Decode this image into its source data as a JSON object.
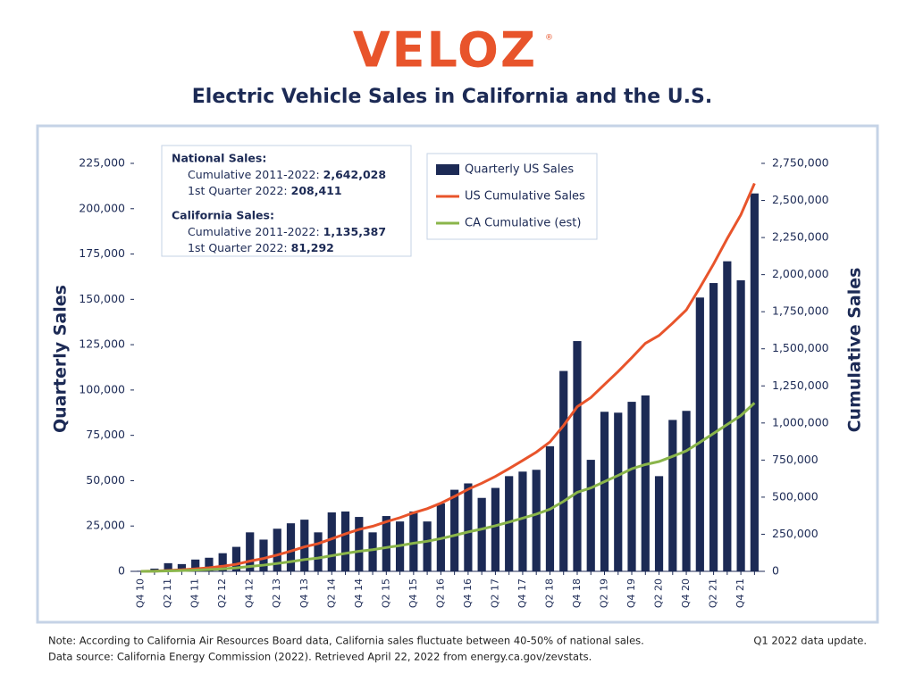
{
  "brand": "VELOZ",
  "brand_mark": "®",
  "footer": {
    "notes": [
      "Note: According to California Air Resources Board data, California sales fluctuate between 40-50% of national sales.",
      "Data source: California Energy Commission (2022). Retrieved April 22, 2022 from energy.ca.gov/zevstats."
    ],
    "update": "Q1 2022 data update."
  },
  "chart_data": {
    "type": "bar",
    "title": "Electric Vehicle Sales in California and the U.S.",
    "y_label": "Quarterly Sales",
    "y2_label": "Cumulative Sales",
    "categories": [
      "Q4 10",
      null,
      "Q2 11",
      null,
      "Q4 11",
      null,
      "Q2 12",
      null,
      "Q4 12",
      null,
      "Q2 13",
      null,
      "Q4 13",
      null,
      "Q2 14",
      null,
      "Q4 14",
      null,
      "Q2 15",
      null,
      "Q4 15",
      null,
      "Q2 16",
      null,
      "Q4 16",
      null,
      "Q2 17",
      null,
      "Q4 17",
      null,
      "Q2 18",
      null,
      "Q4 18",
      null,
      "Q2 19",
      null,
      "Q4 19",
      null,
      "Q2 20",
      null,
      "Q4 20",
      null,
      "Q2 21",
      null,
      "Q4 21",
      null
    ],
    "series": [
      {
        "name": "Quarterly US Sales",
        "type": "bar",
        "color": "#1c2a55",
        "axis": "y",
        "values": [
          300,
          1500,
          4500,
          4000,
          6500,
          7500,
          10000,
          13500,
          21500,
          17500,
          23500,
          26500,
          28500,
          21500,
          32500,
          33000,
          30000,
          21500,
          30500,
          27500,
          33000,
          27500,
          37500,
          45000,
          48500,
          40500,
          46000,
          52500,
          55000,
          56000,
          69000,
          110500,
          127000,
          61500,
          88000,
          87500,
          93500,
          97000,
          52500,
          83500,
          88500,
          151000,
          159000,
          171000,
          160500,
          208411
        ]
      },
      {
        "name": "US Cumulative Sales",
        "type": "line",
        "color": "#e8542b",
        "axis": "y2",
        "values": [
          300,
          1800,
          6300,
          10300,
          16800,
          24300,
          34300,
          47800,
          69300,
          86800,
          110300,
          136800,
          165300,
          186800,
          219300,
          252300,
          282300,
          303800,
          334300,
          361800,
          394800,
          422300,
          459800,
          504800,
          553300,
          593800,
          639800,
          692300,
          747300,
          803300,
          872300,
          982800,
          1109800,
          1171300,
          1259300,
          1346800,
          1440300,
          1537300,
          1589800,
          1673300,
          1761800,
          1912800,
          2071800,
          2242800,
          2403300,
          2615000
        ]
      },
      {
        "name": "CA Cumulative (est)",
        "type": "line",
        "color": "#8ab54a",
        "axis": "y2",
        "values": [
          150,
          900,
          3000,
          5000,
          8100,
          11700,
          16500,
          23000,
          33300,
          41700,
          53000,
          65700,
          79300,
          89700,
          105300,
          121100,
          135500,
          145800,
          160500,
          173700,
          189500,
          202700,
          220700,
          242300,
          265600,
          285000,
          307100,
          332300,
          358700,
          385600,
          418700,
          471700,
          532700,
          562200,
          604500,
          646500,
          691300,
          720000,
          740000,
          775000,
          812000,
          870000,
          930000,
          990000,
          1050000,
          1135000
        ]
      }
    ],
    "ylim": [
      0,
      225000
    ],
    "yticks": [
      0,
      {
        "value": 25000,
        "label": "25,000"
      },
      {
        "value": 50000,
        "label": "50,000"
      },
      {
        "value": 75000,
        "label": "75,000"
      },
      {
        "value": 100000,
        "label": "100,000"
      },
      {
        "value": 125000,
        "label": "125,000"
      },
      {
        "value": 150000,
        "label": "150,000"
      },
      {
        "value": 175000,
        "label": "175,000"
      },
      {
        "value": 200000,
        "label": "200,000"
      },
      {
        "value": 225000,
        "label": "225,000"
      }
    ],
    "y2lim": [
      0,
      2750000
    ],
    "y2ticks": [
      0,
      {
        "value": 250000,
        "label": "250,000"
      },
      {
        "value": 500000,
        "label": "500,000"
      },
      {
        "value": 750000,
        "label": "750,000"
      },
      {
        "value": 1000000,
        "label": "1,000,000"
      },
      {
        "value": 1250000,
        "label": "1,250,000"
      },
      {
        "value": 1500000,
        "label": "1,500,000"
      },
      {
        "value": 1750000,
        "label": "1,750,000"
      },
      {
        "value": 2000000,
        "label": "2,000,000"
      },
      {
        "value": 2250000,
        "label": "2,250,000"
      },
      {
        "value": 2500000,
        "label": "2,500,000"
      },
      {
        "value": 2750000,
        "label": "2,750,000"
      }
    ],
    "grid": false,
    "annotations": [
      {
        "heading": "National Sales:",
        "lines": [
          {
            "label": "Cumulative 2011-2022:",
            "value": "2,642,028"
          },
          {
            "label": "1st Quarter 2022:",
            "value": "208,411"
          }
        ]
      },
      {
        "heading": "California Sales:",
        "lines": [
          {
            "label": "Cumulative 2011-2022:",
            "value": "1,135,387"
          },
          {
            "label": "1st Quarter 2022:",
            "value": "81,292"
          }
        ]
      }
    ]
  }
}
